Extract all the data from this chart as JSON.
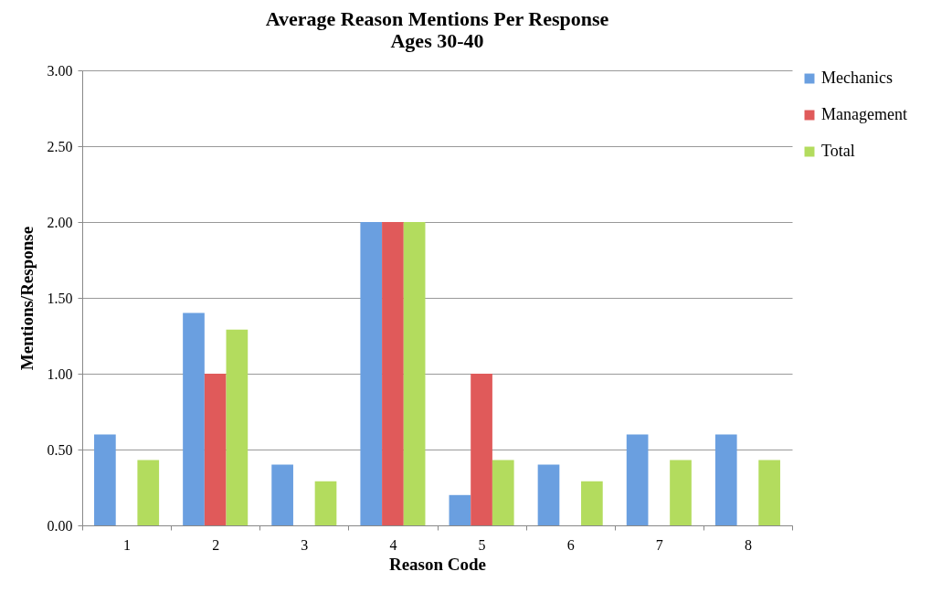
{
  "chart_data": {
    "type": "bar",
    "title": "Average Reason Mentions Per Response",
    "subtitle": "Ages 30-40",
    "xlabel": "Reason Code",
    "ylabel": "Mentions/Response",
    "categories": [
      "1",
      "2",
      "3",
      "4",
      "5",
      "6",
      "7",
      "8"
    ],
    "series": [
      {
        "name": "Mechanics",
        "color": "#6a9fe0",
        "values": [
          0.6,
          1.4,
          0.4,
          2.0,
          0.2,
          0.4,
          0.6,
          0.6
        ]
      },
      {
        "name": "Management",
        "color": "#e05a5a",
        "values": [
          0,
          1.0,
          0,
          2.0,
          1.0,
          0,
          0,
          0
        ]
      },
      {
        "name": "Total",
        "color": "#b3dc5e",
        "values": [
          0.43,
          1.29,
          0.29,
          2.0,
          0.43,
          0.29,
          0.43,
          0.43
        ]
      }
    ],
    "ylim": [
      0,
      3
    ],
    "yticks": [
      {
        "value": 0,
        "label": "0.00"
      },
      {
        "value": 0.5,
        "label": "0.50"
      },
      {
        "value": 1,
        "label": "1.00"
      },
      {
        "value": 1.5,
        "label": "1.50"
      },
      {
        "value": 2,
        "label": "2.00"
      },
      {
        "value": 2.5,
        "label": "2.50"
      },
      {
        "value": 3,
        "label": "3.00"
      }
    ],
    "grid": "y",
    "legend": "right"
  }
}
